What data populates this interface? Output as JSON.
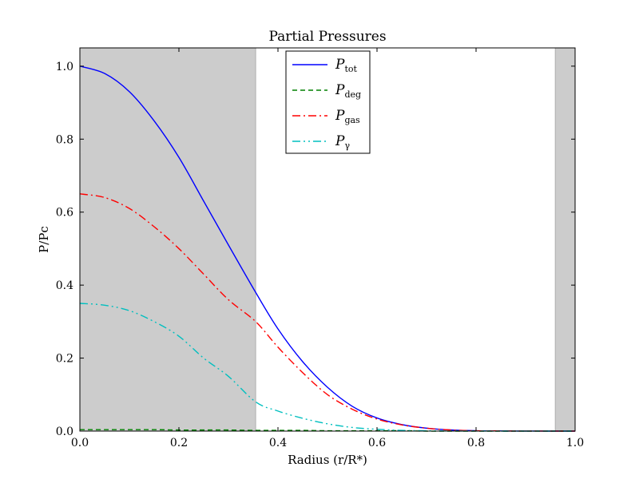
{
  "chart_data": {
    "type": "line",
    "title": "Partial Pressures",
    "xlabel": "Radius (r/R*)",
    "ylabel": "P/Pc",
    "xlim": [
      0.0,
      1.0
    ],
    "ylim": [
      0.0,
      1.05
    ],
    "xticks": [
      "0.0",
      "0.2",
      "0.4",
      "0.6",
      "0.8",
      "1.0"
    ],
    "yticks": [
      "0.0",
      "0.2",
      "0.4",
      "0.6",
      "0.8",
      "1.0"
    ],
    "grid": false,
    "legend_position": "top-center",
    "shaded_regions": [
      [
        0.0,
        0.355
      ],
      [
        0.96,
        1.0
      ]
    ],
    "shade_color": "#cccccc",
    "x": [
      0.0,
      0.05,
      0.1,
      0.15,
      0.2,
      0.25,
      0.3,
      0.355,
      0.4,
      0.45,
      0.5,
      0.55,
      0.6,
      0.65,
      0.7,
      0.75,
      0.8,
      0.85,
      0.9,
      0.95,
      1.0
    ],
    "series": [
      {
        "name": "P_tot",
        "color": "#0000ff",
        "dash": "solid",
        "values": [
          1.0,
          0.98,
          0.93,
          0.85,
          0.75,
          0.63,
          0.51,
          0.38,
          0.28,
          0.19,
          0.12,
          0.068,
          0.036,
          0.018,
          0.008,
          0.003,
          0.001,
          0.0004,
          0.0001,
          0.0,
          0.0
        ]
      },
      {
        "name": "P_deg",
        "color": "#008000",
        "dash": "dashed",
        "values": [
          0.004,
          0.004,
          0.004,
          0.004,
          0.003,
          0.003,
          0.003,
          0.002,
          0.002,
          0.002,
          0.001,
          0.001,
          0.001,
          0.001,
          0.0,
          0.0,
          0.0,
          0.0,
          0.0,
          0.0,
          0.0
        ]
      },
      {
        "name": "P_gas",
        "color": "#ff0000",
        "dash": "dashdot",
        "values": [
          0.65,
          0.64,
          0.61,
          0.56,
          0.5,
          0.43,
          0.36,
          0.3,
          0.23,
          0.16,
          0.1,
          0.06,
          0.033,
          0.017,
          0.008,
          0.003,
          0.001,
          0.0004,
          0.0001,
          0.0,
          0.0
        ]
      },
      {
        "name": "P_γ",
        "color": "#00bfbf",
        "dash": "dashdotdot",
        "values": [
          0.35,
          0.345,
          0.33,
          0.3,
          0.26,
          0.2,
          0.15,
          0.08,
          0.055,
          0.035,
          0.02,
          0.01,
          0.005,
          0.002,
          0.001,
          0.0004,
          0.0001,
          0.0,
          0.0,
          0.0,
          0.0
        ]
      }
    ]
  }
}
